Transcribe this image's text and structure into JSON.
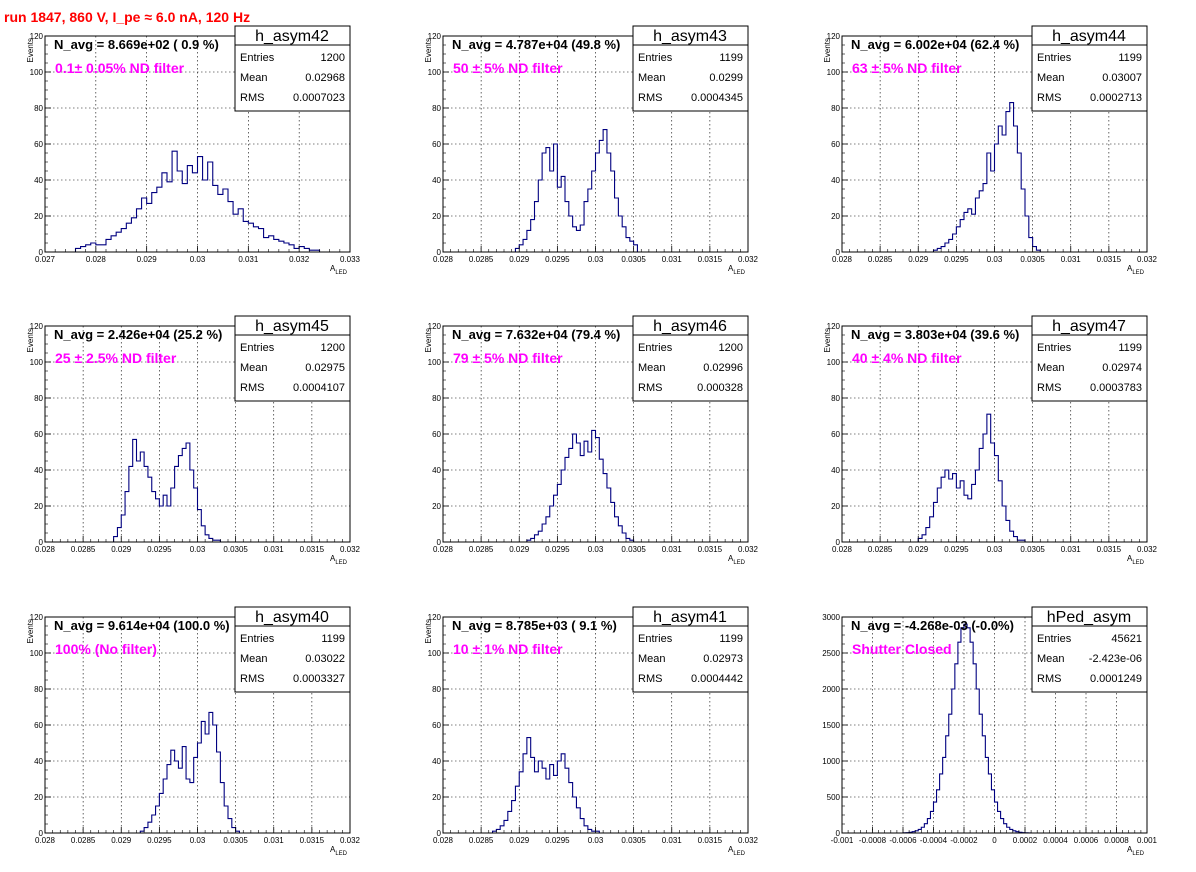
{
  "header": {
    "title": "run 1847,   860 V, I_pe ≈ 6.0 nA, 120 Hz"
  },
  "chart_data": [
    {
      "type": "histogram",
      "name": "h_asym42",
      "n_avg": "N_avg = 8.669e+02 ( 0.9 %)",
      "filter": "0.1± 0.05% ND filter",
      "stats": {
        "entries_label": "Entries",
        "entries": "1200",
        "mean_label": "Mean",
        "mean": "0.02968",
        "rms_label": "RMS",
        "rms": "0.0007023"
      },
      "xlabel": "A",
      "xlabel_sub": "LED",
      "ylabel": "Events",
      "xlim": [
        0.027,
        0.033
      ],
      "ylim": [
        0,
        120
      ],
      "xticks": [
        "0.027",
        "0.028",
        "0.029",
        "0.03",
        "0.031",
        "0.032",
        "0.033"
      ],
      "xtick_values": [
        0.027,
        0.028,
        0.029,
        0.03,
        0.031,
        0.032,
        0.033
      ],
      "yticks": [
        0,
        20,
        40,
        60,
        80,
        100,
        120
      ],
      "bins": {
        "start": 0.0276,
        "width": 0.0001,
        "counts": [
          2,
          3,
          4,
          5,
          4,
          4,
          7,
          9,
          11,
          13,
          16,
          19,
          24,
          30,
          27,
          33,
          36,
          44,
          39,
          56,
          45,
          38,
          48,
          44,
          53,
          40,
          50,
          37,
          32,
          35,
          28,
          21,
          24,
          17,
          16,
          14,
          13,
          8,
          9,
          7,
          6,
          5,
          4,
          2,
          3,
          2,
          1,
          1
        ]
      }
    },
    {
      "type": "histogram",
      "name": "h_asym43",
      "n_avg": "N_avg = 4.787e+04 (49.8 %)",
      "filter": "50 ± 5% ND filter",
      "stats": {
        "entries_label": "Entries",
        "entries": "1199",
        "mean_label": "Mean",
        "mean": "0.0299",
        "rms_label": "RMS",
        "rms": "0.0004345"
      },
      "xlabel": "A",
      "xlabel_sub": "LED",
      "ylabel": "Events",
      "xlim": [
        0.028,
        0.032
      ],
      "ylim": [
        0,
        120
      ],
      "xticks": [
        "0.028",
        "0.0285",
        "0.029",
        "0.0295",
        "0.03",
        "0.0305",
        "0.031",
        "0.0315",
        "0.032"
      ],
      "xtick_values": [
        0.028,
        0.0285,
        0.029,
        0.0295,
        0.03,
        0.0305,
        0.031,
        0.0315,
        0.032
      ],
      "yticks": [
        0,
        20,
        40,
        60,
        80,
        100,
        120
      ],
      "bins": {
        "start": 0.02895,
        "width": 5e-05,
        "counts": [
          2,
          4,
          7,
          12,
          18,
          28,
          40,
          55,
          58,
          45,
          60,
          36,
          42,
          28,
          20,
          14,
          12,
          15,
          28,
          35,
          45,
          55,
          62,
          68,
          55,
          45,
          30,
          20,
          14,
          8,
          6,
          4
        ]
      }
    },
    {
      "type": "histogram",
      "name": "h_asym44",
      "n_avg": "N_avg = 6.002e+04 (62.4 %)",
      "filter": "63 ± 5% ND filter",
      "stats": {
        "entries_label": "Entries",
        "entries": "1199",
        "mean_label": "Mean",
        "mean": "0.03007",
        "rms_label": "RMS",
        "rms": "0.0002713"
      },
      "xlabel": "A",
      "xlabel_sub": "LED",
      "ylabel": "Events",
      "xlim": [
        0.028,
        0.032
      ],
      "ylim": [
        0,
        120
      ],
      "xticks": [
        "0.028",
        "0.0285",
        "0.029",
        "0.0295",
        "0.03",
        "0.0305",
        "0.031",
        "0.0315",
        "0.032"
      ],
      "xtick_values": [
        0.028,
        0.0285,
        0.029,
        0.0295,
        0.03,
        0.0305,
        0.031,
        0.0315,
        0.032
      ],
      "yticks": [
        0,
        20,
        40,
        60,
        80,
        100,
        120
      ],
      "bins": {
        "start": 0.0292,
        "width": 5e-05,
        "counts": [
          1,
          2,
          3,
          5,
          7,
          10,
          14,
          18,
          22,
          24,
          21,
          30,
          34,
          38,
          55,
          45,
          60,
          70,
          65,
          78,
          83,
          70,
          55,
          35,
          20,
          8,
          3,
          1
        ]
      }
    },
    {
      "type": "histogram",
      "name": "h_asym45",
      "n_avg": "N_avg = 2.426e+04 (25.2 %)",
      "filter": "25 ± 2.5% ND filter",
      "stats": {
        "entries_label": "Entries",
        "entries": "1200",
        "mean_label": "Mean",
        "mean": "0.02975",
        "rms_label": "RMS",
        "rms": "0.0004107"
      },
      "xlabel": "A",
      "xlabel_sub": "LED",
      "ylabel": "Events",
      "xlim": [
        0.028,
        0.032
      ],
      "ylim": [
        0,
        120
      ],
      "xticks": [
        "0.028",
        "0.0285",
        "0.029",
        "0.0295",
        "0.03",
        "0.0305",
        "0.031",
        "0.0315",
        "0.032"
      ],
      "xtick_values": [
        0.028,
        0.0285,
        0.029,
        0.0295,
        0.03,
        0.0305,
        0.031,
        0.0315,
        0.032
      ],
      "yticks": [
        0,
        20,
        40,
        60,
        80,
        100,
        120
      ],
      "bins": {
        "start": 0.0289,
        "width": 5e-05,
        "counts": [
          3,
          8,
          15,
          28,
          42,
          57,
          45,
          50,
          42,
          36,
          28,
          24,
          20,
          26,
          20,
          30,
          42,
          48,
          52,
          55,
          40,
          30,
          18,
          9,
          4,
          2,
          1,
          1
        ]
      }
    },
    {
      "type": "histogram",
      "name": "h_asym46",
      "n_avg": "N_avg = 7.632e+04 (79.4 %)",
      "filter": "79 ± 5% ND filter",
      "stats": {
        "entries_label": "Entries",
        "entries": "1200",
        "mean_label": "Mean",
        "mean": "0.02996",
        "rms_label": "RMS",
        "rms": "0.000328"
      },
      "xlabel": "A",
      "xlabel_sub": "LED",
      "ylabel": "Events",
      "xlim": [
        0.028,
        0.032
      ],
      "ylim": [
        0,
        120
      ],
      "xticks": [
        "0.028",
        "0.0285",
        "0.029",
        "0.0295",
        "0.03",
        "0.0305",
        "0.031",
        "0.0315",
        "0.032"
      ],
      "xtick_values": [
        0.028,
        0.0285,
        0.029,
        0.0295,
        0.03,
        0.0305,
        0.031,
        0.0315,
        0.032
      ],
      "yticks": [
        0,
        20,
        40,
        60,
        80,
        100,
        120
      ],
      "bins": {
        "start": 0.0291,
        "width": 5e-05,
        "counts": [
          1,
          2,
          4,
          6,
          10,
          14,
          20,
          26,
          32,
          40,
          47,
          52,
          60,
          55,
          48,
          56,
          50,
          62,
          58,
          46,
          38,
          30,
          22,
          14,
          9,
          5,
          2,
          1
        ]
      }
    },
    {
      "type": "histogram",
      "name": "h_asym47",
      "n_avg": "N_avg = 3.803e+04 (39.6 %)",
      "filter": "40 ± 4% ND filter",
      "stats": {
        "entries_label": "Entries",
        "entries": "1199",
        "mean_label": "Mean",
        "mean": "0.02974",
        "rms_label": "RMS",
        "rms": "0.0003783"
      },
      "xlabel": "A",
      "xlabel_sub": "LED",
      "ylabel": "Events",
      "xlim": [
        0.028,
        0.032
      ],
      "ylim": [
        0,
        120
      ],
      "xticks": [
        "0.028",
        "0.0285",
        "0.029",
        "0.0295",
        "0.03",
        "0.0305",
        "0.031",
        "0.0315",
        "0.032"
      ],
      "xtick_values": [
        0.028,
        0.0285,
        0.029,
        0.0295,
        0.03,
        0.0305,
        0.031,
        0.0315,
        0.032
      ],
      "yticks": [
        0,
        20,
        40,
        60,
        80,
        100,
        120
      ],
      "bins": {
        "start": 0.029,
        "width": 5e-05,
        "counts": [
          2,
          4,
          8,
          14,
          22,
          30,
          36,
          40,
          35,
          38,
          30,
          34,
          26,
          24,
          32,
          40,
          52,
          60,
          71,
          55,
          48,
          34,
          20,
          12,
          6,
          3,
          1,
          1
        ]
      }
    },
    {
      "type": "histogram",
      "name": "h_asym40",
      "n_avg": "N_avg = 9.614e+04 (100.0 %)",
      "filter": "100% (No filter)",
      "stats": {
        "entries_label": "Entries",
        "entries": "1199",
        "mean_label": "Mean",
        "mean": "0.03022",
        "rms_label": "RMS",
        "rms": "0.0003327"
      },
      "xlabel": "A",
      "xlabel_sub": "LED",
      "ylabel": "Events",
      "xlim": [
        0.028,
        0.032
      ],
      "ylim": [
        0,
        120
      ],
      "xticks": [
        "0.028",
        "0.0285",
        "0.029",
        "0.0295",
        "0.03",
        "0.0305",
        "0.031",
        "0.0315",
        "0.032"
      ],
      "xtick_values": [
        0.028,
        0.0285,
        0.029,
        0.0295,
        0.03,
        0.0305,
        0.031,
        0.0315,
        0.032
      ],
      "yticks": [
        0,
        20,
        40,
        60,
        80,
        100,
        120
      ],
      "bins": {
        "start": 0.02925,
        "width": 5e-05,
        "counts": [
          1,
          3,
          6,
          10,
          15,
          22,
          30,
          38,
          46,
          40,
          36,
          48,
          30,
          28,
          42,
          50,
          62,
          55,
          67,
          60,
          45,
          28,
          15,
          8,
          3,
          1
        ]
      }
    },
    {
      "type": "histogram",
      "name": "h_asym41",
      "n_avg": "N_avg = 8.785e+03 ( 9.1 %)",
      "filter": "10 ± 1% ND filter",
      "stats": {
        "entries_label": "Entries",
        "entries": "1199",
        "mean_label": "Mean",
        "mean": "0.02973",
        "rms_label": "RMS",
        "rms": "0.0004442"
      },
      "xlabel": "A",
      "xlabel_sub": "LED",
      "ylabel": "Events",
      "xlim": [
        0.028,
        0.032
      ],
      "ylim": [
        0,
        120
      ],
      "xticks": [
        "0.028",
        "0.0285",
        "0.029",
        "0.0295",
        "0.03",
        "0.0305",
        "0.031",
        "0.0315",
        "0.032"
      ],
      "xtick_values": [
        0.028,
        0.0285,
        0.029,
        0.0295,
        0.03,
        0.0305,
        0.031,
        0.0315,
        0.032
      ],
      "yticks": [
        0,
        20,
        40,
        60,
        80,
        100,
        120
      ],
      "bins": {
        "start": 0.02865,
        "width": 5e-05,
        "counts": [
          1,
          2,
          4,
          7,
          12,
          18,
          26,
          34,
          44,
          53,
          42,
          34,
          40,
          36,
          30,
          38,
          32,
          40,
          44,
          36,
          28,
          20,
          14,
          8,
          4,
          2,
          1,
          1
        ]
      }
    },
    {
      "type": "histogram",
      "name": "hPed_asym",
      "n_avg": "N_avg = -4.268e-03 (-0.0%)",
      "filter": "Shutter Closed",
      "stats": {
        "entries_label": "Entries",
        "entries": "45621",
        "mean_label": "Mean",
        "mean": "-2.423e-06",
        "rms_label": "RMS",
        "rms": "0.0001249"
      },
      "xlabel": "A",
      "xlabel_sub": "LED",
      "ylabel": "",
      "xlim": [
        -0.001,
        0.001
      ],
      "ylim": [
        0,
        3000
      ],
      "xticks": [
        "-0.001",
        "-0.0008",
        "-0.0006",
        "-0.0004",
        "-0.0002",
        "0",
        "0.0002",
        "0.0004",
        "0.0006",
        "0.0008",
        "0.001"
      ],
      "xtick_values": [
        -0.001,
        -0.0008,
        -0.0006,
        -0.0004,
        -0.0002,
        0,
        0.0002,
        0.0004,
        0.0006,
        0.0008,
        0.001
      ],
      "yticks": [
        0,
        500,
        1000,
        1500,
        2000,
        2500,
        3000
      ],
      "bins": {
        "start": -0.0006,
        "width": 2e-05,
        "counts": [
          2,
          5,
          10,
          18,
          30,
          50,
          80,
          130,
          200,
          300,
          430,
          600,
          820,
          1050,
          1350,
          1650,
          2000,
          2350,
          2650,
          2850,
          2900,
          2850,
          2650,
          2350,
          2000,
          1650,
          1350,
          1050,
          820,
          600,
          430,
          300,
          200,
          130,
          80,
          50,
          30,
          18,
          10,
          5,
          2,
          1
        ]
      }
    }
  ]
}
